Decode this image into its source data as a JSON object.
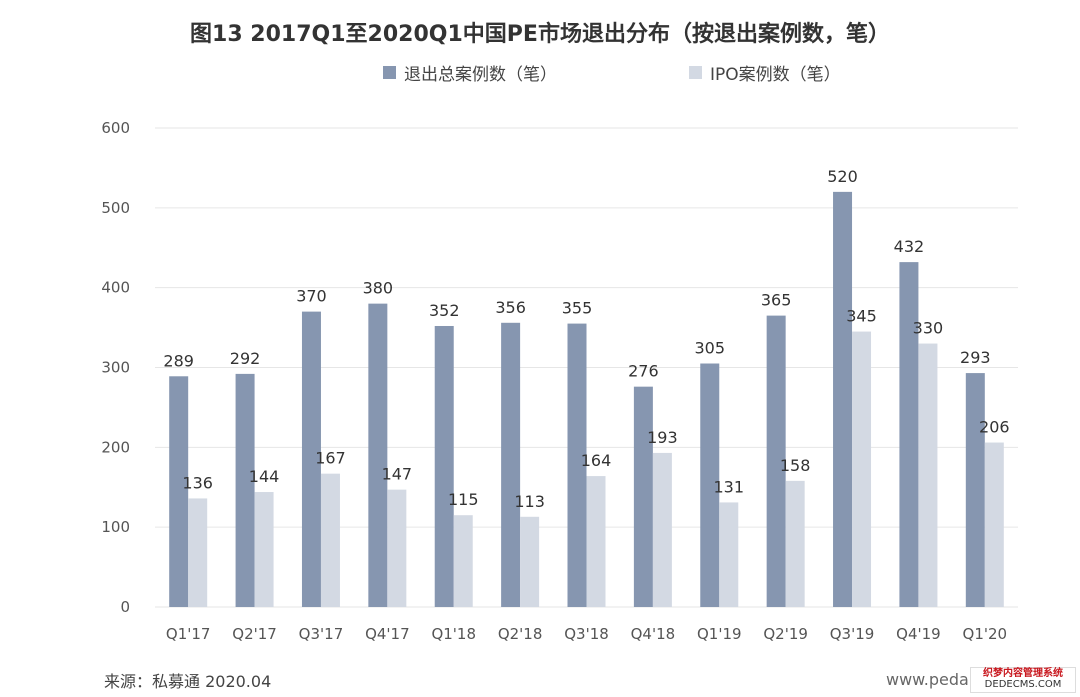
{
  "header": {
    "title": "图13 2017Q1至2020Q1中国PE市场退出分布（按退出案例数，笔）"
  },
  "footer": {
    "source": "来源：私募通 2020.04",
    "url": "www.peda",
    "stamp_line1": "织梦内容管理系统",
    "stamp_line2": "DEDECMS.COM"
  },
  "colors": {
    "series1": "#8696b0",
    "series2": "#d3d9e3",
    "grid": "#e6e6e6"
  },
  "chart_data": {
    "type": "bar",
    "title": "图13 2017Q1至2020Q1中国PE市场退出分布（按退出案例数，笔）",
    "categories": [
      "Q1'17",
      "Q2'17",
      "Q3'17",
      "Q4'17",
      "Q1'18",
      "Q2'18",
      "Q3'18",
      "Q4'18",
      "Q1'19",
      "Q2'19",
      "Q3'19",
      "Q4'19",
      "Q1'20"
    ],
    "series": [
      {
        "name": "退出总案例数（笔）",
        "values": [
          289,
          292,
          370,
          380,
          352,
          356,
          355,
          276,
          305,
          365,
          520,
          432,
          293
        ]
      },
      {
        "name": "IPO案例数（笔）",
        "values": [
          136,
          144,
          167,
          147,
          115,
          113,
          164,
          193,
          131,
          158,
          345,
          330,
          206
        ]
      }
    ],
    "ylim": [
      0,
      600
    ],
    "yticks": [
      0,
      100,
      200,
      300,
      400,
      500,
      600
    ],
    "xlabel": "",
    "ylabel": "",
    "grid": true,
    "legend_position": "top-center",
    "data_labels": true
  }
}
